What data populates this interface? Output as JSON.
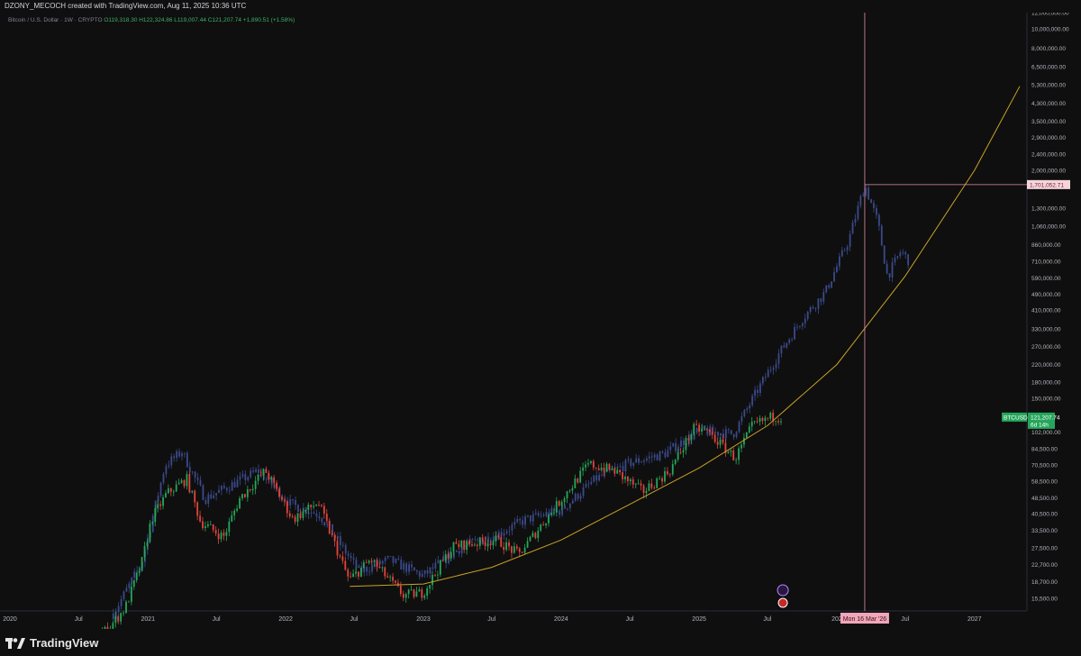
{
  "header": {
    "credit": "DZONY_MECOCH created with TradingView.com, Aug 11, 2025 10:36 UTC"
  },
  "legend": {
    "symbol": "Bitcoin / U.S. Dollar · 1W · CRYPTO",
    "ohlc": "O119,318.30 H122,324.86 L119,007.44 C121,207.74 +1,890.51 (+1.58%)"
  },
  "footer": {
    "brand": "TradingView",
    "logo_icon": "tradingview-logo-icon"
  },
  "colors": {
    "background": "#0f0f0f",
    "up": "#26a65b",
    "down": "#e0453d",
    "projection": "#3b4a8c",
    "curve": "#c9a227",
    "crosshair": "#e58fa6",
    "badge": "#26a65b"
  },
  "chart_data": {
    "type": "candlestick",
    "y_scale": "log",
    "ylim": [
      13400,
      12000000
    ],
    "xlim": [
      "2019-12-20",
      "2027-05-20"
    ],
    "y_ticks": [
      {
        "value": 12000000,
        "label": "12,000,000.00"
      },
      {
        "value": 10000000,
        "label": "10,000,000.00"
      },
      {
        "value": 8000000,
        "label": "8,000,000.00"
      },
      {
        "value": 6500000,
        "label": "6,500,000.00"
      },
      {
        "value": 5300000,
        "label": "5,300,000.00"
      },
      {
        "value": 4300000,
        "label": "4,300,000.00"
      },
      {
        "value": 3500000,
        "label": "3,500,000.00"
      },
      {
        "value": 2900000,
        "label": "2,900,000.00"
      },
      {
        "value": 2400000,
        "label": "2,400,000.00"
      },
      {
        "value": 2000000,
        "label": "2,000,000.00"
      },
      {
        "value": 1300000,
        "label": "1,300,000.00"
      },
      {
        "value": 1060000,
        "label": "1,060,000.00"
      },
      {
        "value": 860000,
        "label": "860,000.00"
      },
      {
        "value": 710000,
        "label": "710,000.00"
      },
      {
        "value": 590000,
        "label": "590,000.00"
      },
      {
        "value": 490000,
        "label": "490,000.00"
      },
      {
        "value": 410000,
        "label": "410,000.00"
      },
      {
        "value": 330000,
        "label": "330,000.00"
      },
      {
        "value": 270000,
        "label": "270,000.00"
      },
      {
        "value": 220000,
        "label": "220,000.00"
      },
      {
        "value": 180000,
        "label": "180,000.00"
      },
      {
        "value": 150000,
        "label": "150,000.00"
      },
      {
        "value": 102000,
        "label": "102,000.00"
      },
      {
        "value": 84500,
        "label": "84,500.00"
      },
      {
        "value": 70500,
        "label": "70,500.00"
      },
      {
        "value": 58500,
        "label": "58,500.00"
      },
      {
        "value": 48500,
        "label": "48,500.00"
      },
      {
        "value": 40500,
        "label": "40,500.00"
      },
      {
        "value": 33500,
        "label": "33,500.00"
      },
      {
        "value": 27500,
        "label": "27,500.00"
      },
      {
        "value": 22700,
        "label": "22,700.00"
      },
      {
        "value": 18700,
        "label": "18,700.00"
      },
      {
        "value": 15500,
        "label": "15,500.00"
      }
    ],
    "x_ticks": [
      {
        "date": "2020-01-01",
        "label": "2020"
      },
      {
        "date": "2020-07-01",
        "label": "Jul"
      },
      {
        "date": "2021-01-01",
        "label": "2021"
      },
      {
        "date": "2021-07-01",
        "label": "Jul"
      },
      {
        "date": "2022-01-01",
        "label": "2022"
      },
      {
        "date": "2022-07-01",
        "label": "Jul"
      },
      {
        "date": "2023-01-01",
        "label": "2023"
      },
      {
        "date": "2023-07-01",
        "label": "Jul"
      },
      {
        "date": "2024-01-01",
        "label": "2024"
      },
      {
        "date": "2024-07-01",
        "label": "Jul"
      },
      {
        "date": "2025-01-01",
        "label": "2025"
      },
      {
        "date": "2025-07-01",
        "label": "Jul"
      },
      {
        "date": "2026-01-01",
        "label": "202"
      },
      {
        "date": "2026-07-01",
        "label": "Jul"
      },
      {
        "date": "2027-01-01",
        "label": "2027"
      }
    ],
    "price_badge": {
      "label": "BTCUSD",
      "value": 121207.74,
      "value_label": "121,207.74",
      "countdown": "6d 14h"
    },
    "crosshair": {
      "date": "2026-03-16",
      "date_label": "Mon 16 Mar '26",
      "price": 1701052.71,
      "price_label": "1,701,052.71"
    },
    "series": [
      {
        "name": "actual",
        "points": [
          {
            "date": "2020-07-15",
            "price": 9300
          },
          {
            "date": "2020-09-15",
            "price": 10800
          },
          {
            "date": "2020-11-01",
            "price": 13800
          },
          {
            "date": "2020-12-15",
            "price": 23000
          },
          {
            "date": "2021-01-10",
            "price": 38000
          },
          {
            "date": "2021-02-20",
            "price": 51000
          },
          {
            "date": "2021-04-14",
            "price": 60000
          },
          {
            "date": "2021-05-20",
            "price": 37000
          },
          {
            "date": "2021-07-20",
            "price": 31000
          },
          {
            "date": "2021-09-01",
            "price": 48000
          },
          {
            "date": "2021-11-08",
            "price": 66000
          },
          {
            "date": "2022-01-20",
            "price": 38000
          },
          {
            "date": "2022-03-28",
            "price": 46000
          },
          {
            "date": "2022-06-18",
            "price": 19000
          },
          {
            "date": "2022-08-15",
            "price": 24000
          },
          {
            "date": "2022-11-09",
            "price": 16000
          },
          {
            "date": "2022-12-31",
            "price": 16500
          },
          {
            "date": "2023-03-20",
            "price": 28000
          },
          {
            "date": "2023-07-15",
            "price": 30000
          },
          {
            "date": "2023-09-11",
            "price": 25500
          },
          {
            "date": "2023-12-10",
            "price": 42000
          },
          {
            "date": "2024-03-14",
            "price": 71000
          },
          {
            "date": "2024-05-20",
            "price": 66000
          },
          {
            "date": "2024-08-05",
            "price": 52000
          },
          {
            "date": "2024-10-15",
            "price": 66000
          },
          {
            "date": "2024-12-17",
            "price": 106000
          },
          {
            "date": "2025-01-20",
            "price": 104000
          },
          {
            "date": "2025-04-07",
            "price": 76000
          },
          {
            "date": "2025-05-22",
            "price": 110000
          },
          {
            "date": "2025-07-14",
            "price": 122000
          },
          {
            "date": "2025-08-11",
            "price": 121207.74
          }
        ]
      },
      {
        "name": "projection",
        "points": [
          {
            "date": "2020-10-01",
            "price": 13000
          },
          {
            "date": "2020-12-15",
            "price": 23000
          },
          {
            "date": "2021-02-15",
            "price": 70000
          },
          {
            "date": "2021-04-01",
            "price": 82000
          },
          {
            "date": "2021-06-01",
            "price": 48000
          },
          {
            "date": "2021-08-01",
            "price": 55000
          },
          {
            "date": "2021-10-20",
            "price": 66000
          },
          {
            "date": "2022-01-15",
            "price": 45000
          },
          {
            "date": "2022-04-01",
            "price": 40000
          },
          {
            "date": "2022-07-15",
            "price": 21000
          },
          {
            "date": "2022-10-01",
            "price": 24000
          },
          {
            "date": "2023-01-01",
            "price": 20000
          },
          {
            "date": "2023-04-15",
            "price": 28000
          },
          {
            "date": "2023-07-15",
            "price": 32000
          },
          {
            "date": "2023-10-01",
            "price": 38000
          },
          {
            "date": "2024-01-01",
            "price": 42000
          },
          {
            "date": "2024-04-01",
            "price": 60000
          },
          {
            "date": "2024-07-01",
            "price": 72000
          },
          {
            "date": "2024-10-01",
            "price": 80000
          },
          {
            "date": "2025-01-01",
            "price": 104000
          },
          {
            "date": "2025-04-01",
            "price": 100000
          },
          {
            "date": "2025-06-01",
            "price": 160000
          },
          {
            "date": "2025-08-01",
            "price": 250000
          },
          {
            "date": "2025-10-01",
            "price": 370000
          },
          {
            "date": "2025-12-01",
            "price": 500000
          },
          {
            "date": "2026-02-01",
            "price": 900000
          },
          {
            "date": "2026-03-16",
            "price": 1700000
          },
          {
            "date": "2026-04-20",
            "price": 1100000
          },
          {
            "date": "2026-05-15",
            "price": 600000
          },
          {
            "date": "2026-06-20",
            "price": 800000
          },
          {
            "date": "2026-07-15",
            "price": 700000
          }
        ]
      },
      {
        "name": "curve",
        "points": [
          {
            "date": "2022-06-20",
            "price": 17700
          },
          {
            "date": "2023-01-01",
            "price": 18200
          },
          {
            "date": "2023-07-01",
            "price": 22000
          },
          {
            "date": "2024-01-01",
            "price": 30000
          },
          {
            "date": "2024-07-01",
            "price": 45000
          },
          {
            "date": "2025-01-01",
            "price": 68000
          },
          {
            "date": "2025-07-01",
            "price": 110000
          },
          {
            "date": "2026-01-01",
            "price": 220000
          },
          {
            "date": "2026-07-01",
            "price": 600000
          },
          {
            "date": "2027-01-01",
            "price": 2000000
          },
          {
            "date": "2027-05-01",
            "price": 5200000
          }
        ]
      }
    ]
  }
}
